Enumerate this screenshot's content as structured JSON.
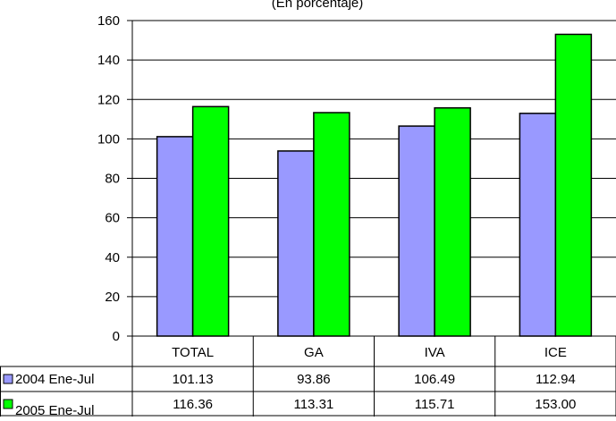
{
  "chart_data": {
    "type": "bar",
    "subtitle": "(En porcentaje)",
    "categories": [
      "TOTAL",
      "GA",
      "IVA",
      "ICE"
    ],
    "series": [
      {
        "name": "2004 Ene-Jul",
        "color": "#9999ff",
        "values": [
          101.13,
          93.86,
          106.49,
          112.94
        ],
        "labels": [
          "101.13",
          "93.86",
          "106.49",
          "112.94"
        ]
      },
      {
        "name": "2005 Ene-Jul",
        "color": "#00ff00",
        "values": [
          116.36,
          113.31,
          115.71,
          153.0
        ],
        "labels": [
          "116.36",
          "113.31",
          "115.71",
          "153.00"
        ]
      }
    ],
    "ylim": [
      0,
      160
    ],
    "yticks": [
      0,
      20,
      40,
      60,
      80,
      100,
      120,
      140,
      160
    ],
    "grid": true,
    "legend": "data-table-left"
  }
}
